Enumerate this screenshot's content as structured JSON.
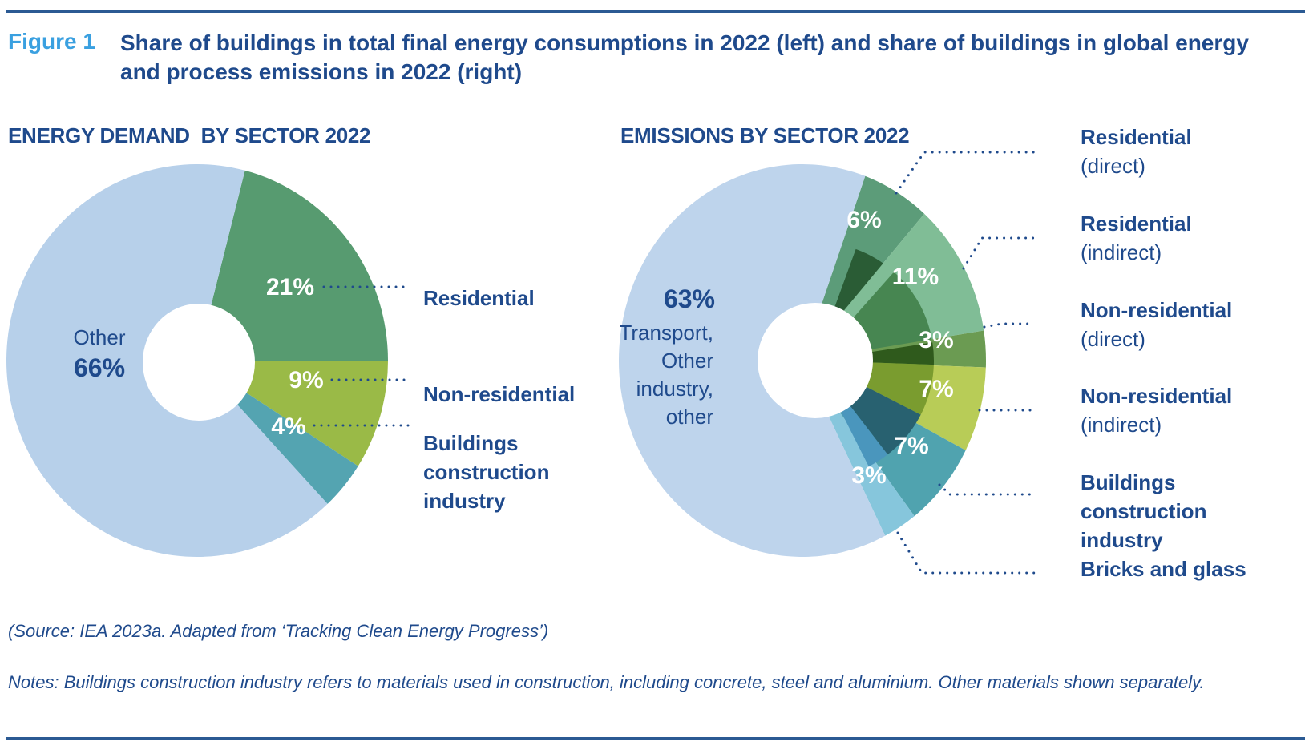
{
  "figure": {
    "label": "Figure 1",
    "title": "Share of buildings in total final energy consumptions in 2022 (left) and share of buildings in global energy and process emissions in 2022 (right)"
  },
  "footer": {
    "source": "(Source: IEA 2023a. Adapted from ‘Tracking Clean Energy Progress’)",
    "notes": "Notes: Buildings construction industry refers to materials used in construction, including concrete, steel and aluminium. Other materials shown separately."
  },
  "chart_data": [
    {
      "type": "pie",
      "title": "ENERGY DEMAND  BY SECTOR 2022",
      "center_label": {
        "name": "Other",
        "value": "66%"
      },
      "slices": [
        {
          "name": "Other",
          "value": 66,
          "label": "66%",
          "color": "#b7d0ea"
        },
        {
          "name": "Residential",
          "value": 21,
          "label": "21%",
          "color": "#579b70"
        },
        {
          "name": "Non-residential",
          "value": 9,
          "label": "9%",
          "color": "#9aba47"
        },
        {
          "name": "Buildings construction industry",
          "value": 4,
          "label": "4%",
          "color": "#54a4b1"
        }
      ],
      "legend": [
        {
          "name": "Residential",
          "lines": [
            "Residential"
          ]
        },
        {
          "name": "Non-residential",
          "lines": [
            "Non-residential"
          ]
        },
        {
          "name": "Buildings construction industry",
          "lines": [
            "Buildings",
            "construction",
            "industry"
          ]
        }
      ]
    },
    {
      "type": "pie",
      "title": "EMISSIONS BY SECTOR 2022",
      "center_label": {
        "value": "63%",
        "lines": [
          "Transport,",
          "Other",
          "industry,",
          "other"
        ]
      },
      "slices": [
        {
          "name": "Transport, Other industry, other",
          "value": 63,
          "label": "63%",
          "color": "#bed4ec",
          "inner": "#bed4ec"
        },
        {
          "name": "Residential (direct)",
          "value": 6,
          "label": "6%",
          "color": "#5c9c79",
          "inner": "#2a5c35"
        },
        {
          "name": "Residential (indirect)",
          "value": 11,
          "label": "11%",
          "color": "#80bd96",
          "inner": "#478651"
        },
        {
          "name": "Non-residential (direct)",
          "value": 3,
          "label": "3%",
          "color": "#6b9b52",
          "inner": "#2f5a1c"
        },
        {
          "name": "Non-residential (indirect)",
          "value": 7,
          "label": "7%",
          "color": "#b8cc57",
          "inner": "#7a9c2f"
        },
        {
          "name": "Buildings construction industry",
          "value": 7,
          "label": "7%",
          "color": "#50a3af",
          "inner": "#286170"
        },
        {
          "name": "Bricks and glass",
          "value": 3,
          "label": "3%",
          "color": "#86c6dc",
          "inner": "#4a96bd"
        }
      ],
      "legend": [
        {
          "name": "Residential (direct)",
          "bold": "Residential",
          "normal": "(direct)"
        },
        {
          "name": "Residential (indirect)",
          "bold": "Residential",
          "normal": "(indirect)"
        },
        {
          "name": "Non-residential (direct)",
          "bold": "Non-residential",
          "normal": "(direct)"
        },
        {
          "name": "Non-residential (indirect)",
          "bold": "Non-residential",
          "normal": "(indirect)"
        },
        {
          "name": "Buildings construction industry",
          "bold": "Buildings construction",
          "bold2": "industry"
        },
        {
          "name": "Bricks and glass",
          "bold": "Bricks and glass"
        }
      ]
    }
  ]
}
